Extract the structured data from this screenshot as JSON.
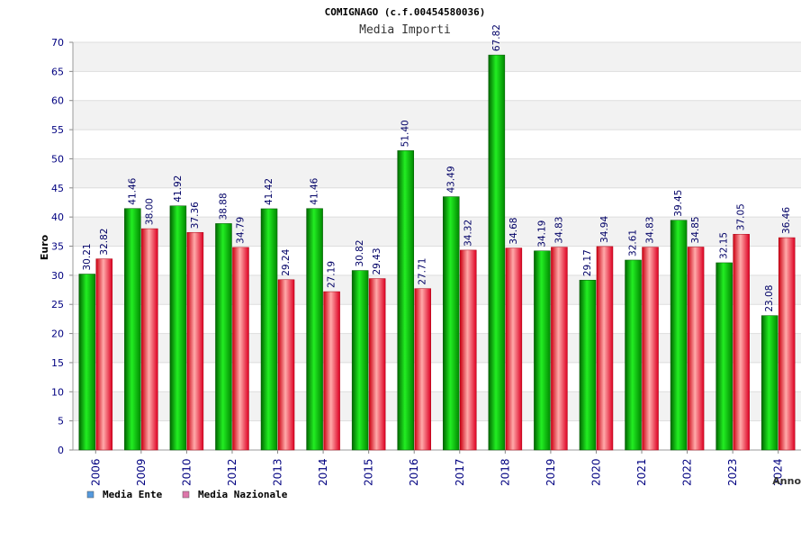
{
  "chart_data": {
    "type": "bar",
    "title": "COMIGNAGO (c.f.00454580036)",
    "subtitle": "Media Importi",
    "xlabel": "Anno",
    "ylabel": "Euro",
    "ylim": [
      0,
      70
    ],
    "ytick_step": 5,
    "grid": true,
    "legend_position": "bottom-left",
    "categories": [
      "2006",
      "2009",
      "2010",
      "2012",
      "2013",
      "2014",
      "2015",
      "2016",
      "2017",
      "2018",
      "2019",
      "2020",
      "2021",
      "2022",
      "2023",
      "2024"
    ],
    "series": [
      {
        "name": "Media Ente",
        "color": "#00aa00",
        "legend_color": "#5599dd",
        "values": [
          30.21,
          41.46,
          41.92,
          38.88,
          41.42,
          41.46,
          30.82,
          51.4,
          43.49,
          67.82,
          34.19,
          29.17,
          32.61,
          39.45,
          32.15,
          23.08
        ],
        "labels": [
          "30.21",
          "41.46",
          "41.92",
          "38.88",
          "41.42",
          "41.46",
          "30.82",
          "51.40",
          "43.49",
          "67.82",
          "34.19",
          "29.17",
          "32.61",
          "39.45",
          "32.15",
          "23.08"
        ]
      },
      {
        "name": "Media Nazionale",
        "color": "#ee2233",
        "legend_color": "#dd77aa",
        "values": [
          32.82,
          38.0,
          37.36,
          34.79,
          29.24,
          27.19,
          29.43,
          27.71,
          34.32,
          34.68,
          34.83,
          34.94,
          34.83,
          34.85,
          37.05,
          36.46
        ],
        "labels": [
          "32.82",
          "38.00",
          "37.36",
          "34.79",
          "29.24",
          "27.19",
          "29.43",
          "27.71",
          "34.32",
          "34.68",
          "34.83",
          "34.94",
          "34.83",
          "34.85",
          "37.05",
          "36.46"
        ]
      }
    ]
  }
}
